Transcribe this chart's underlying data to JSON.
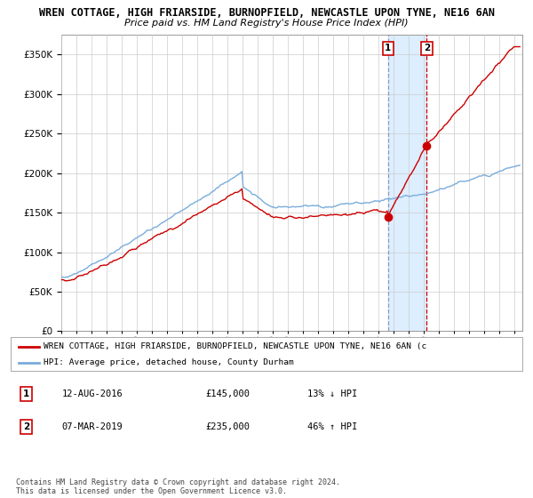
{
  "title": "WREN COTTAGE, HIGH FRIARSIDE, BURNOPFIELD, NEWCASTLE UPON TYNE, NE16 6AN",
  "subtitle": "Price paid vs. HM Land Registry's House Price Index (HPI)",
  "red_label": "WREN COTTAGE, HIGH FRIARSIDE, BURNOPFIELD, NEWCASTLE UPON TYNE, NE16 6AN (c",
  "blue_label": "HPI: Average price, detached house, County Durham",
  "annotation1_date": "12-AUG-2016",
  "annotation1_price": "£145,000",
  "annotation1_hpi": "13% ↓ HPI",
  "annotation1_year": 2016.62,
  "annotation1_value": 145000,
  "annotation2_date": "07-MAR-2019",
  "annotation2_price": "£235,000",
  "annotation2_hpi": "46% ↑ HPI",
  "annotation2_year": 2019.18,
  "annotation2_value": 235000,
  "ylim": [
    0,
    375000
  ],
  "xlim_start": 1995,
  "xlim_end": 2025.5,
  "ylabel_ticks": [
    0,
    50000,
    100000,
    150000,
    200000,
    250000,
    300000,
    350000
  ],
  "copyright_text": "Contains HM Land Registry data © Crown copyright and database right 2024.\nThis data is licensed under the Open Government Licence v3.0.",
  "red_color": "#cc0000",
  "blue_color": "#7aaddb",
  "shade_color": "#ddeeff",
  "grid_color": "#cccccc",
  "background_color": "#ffffff"
}
